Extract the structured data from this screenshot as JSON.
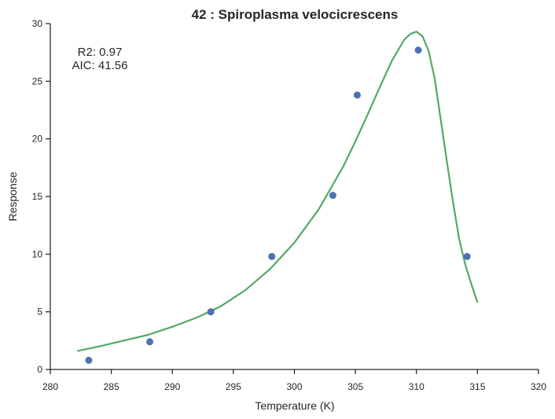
{
  "chart_data": {
    "type": "scatter",
    "title": "42 : Spiroplasma velocicrescens",
    "xlabel": "Temperature (K)",
    "ylabel": "Response",
    "xlim": [
      280,
      320
    ],
    "ylim": [
      0,
      30
    ],
    "xticks": [
      280,
      285,
      290,
      295,
      300,
      305,
      310,
      315,
      320
    ],
    "yticks": [
      0,
      5,
      10,
      15,
      20,
      25,
      30
    ],
    "grid": false,
    "annotations": [
      "R2: 0.97",
      "AIC: 41.56"
    ],
    "colors": {
      "points": "#4c72b0",
      "fit": "#55a868",
      "axis": "#262626"
    },
    "series": [
      {
        "type": "scatter",
        "x": [
          283.15,
          288.15,
          293.15,
          298.15,
          303.15,
          305.15,
          310.15,
          314.15
        ],
        "y": [
          0.8,
          2.4,
          5.0,
          9.8,
          15.1,
          23.8,
          27.7,
          9.8
        ]
      },
      {
        "type": "line",
        "x": [
          282.2,
          284,
          286,
          288,
          290,
          292,
          294,
          296,
          298,
          300,
          302,
          304,
          305,
          306,
          307,
          308,
          309,
          309.5,
          310,
          310.5,
          311,
          311.5,
          312,
          312.5,
          313,
          313.5,
          314,
          314.5,
          315
        ],
        "y": [
          1.6,
          2.0,
          2.5,
          3.0,
          3.7,
          4.5,
          5.5,
          6.9,
          8.7,
          11.0,
          13.9,
          17.6,
          19.8,
          22.1,
          24.5,
          26.8,
          28.6,
          29.1,
          29.3,
          28.9,
          27.6,
          25.2,
          21.6,
          18.0,
          14.5,
          11.3,
          9.1,
          7.4,
          5.8
        ]
      }
    ]
  }
}
